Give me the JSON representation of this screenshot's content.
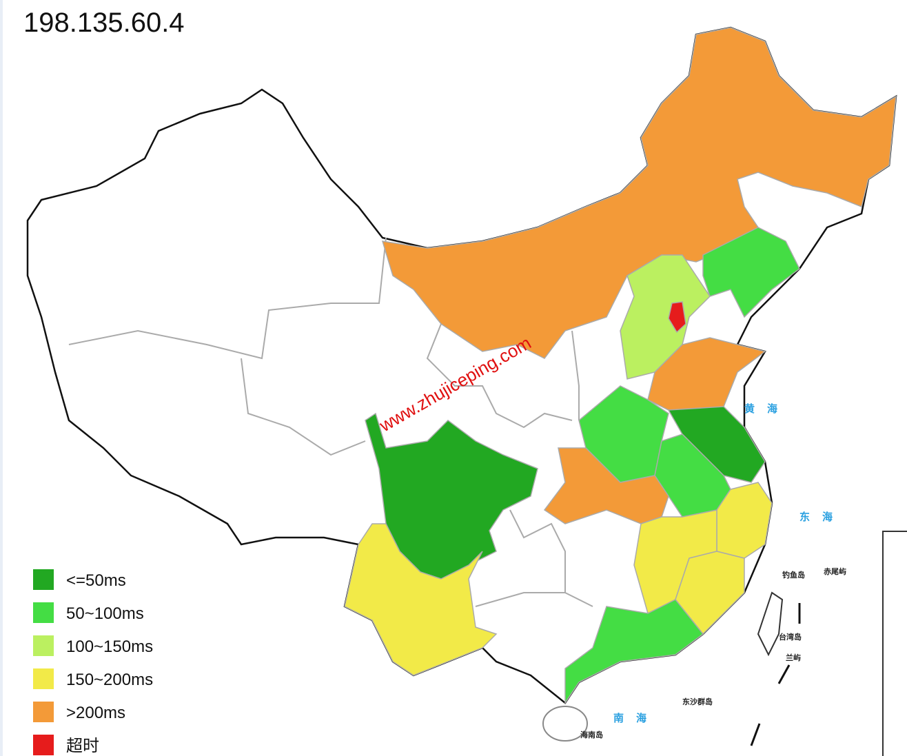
{
  "title": "198.135.60.4",
  "watermark": "www.zhujiceping.com",
  "legend": [
    {
      "label": "<=50ms",
      "color": "#22a822"
    },
    {
      "label": "50~100ms",
      "color": "#44dd44"
    },
    {
      "label": "100~150ms",
      "color": "#bbf060"
    },
    {
      "label": "150~200ms",
      "color": "#f2ea48"
    },
    {
      "label": ">200ms",
      "color": "#f39a38"
    },
    {
      "label": "超时",
      "color": "#e61c1c"
    }
  ],
  "seas": [
    "黄海",
    "东海",
    "南海"
  ],
  "islands": [
    "钓鱼岛",
    "赤尾屿",
    "台湾岛",
    "兰屿",
    "东沙群岛",
    "海南岛"
  ]
}
